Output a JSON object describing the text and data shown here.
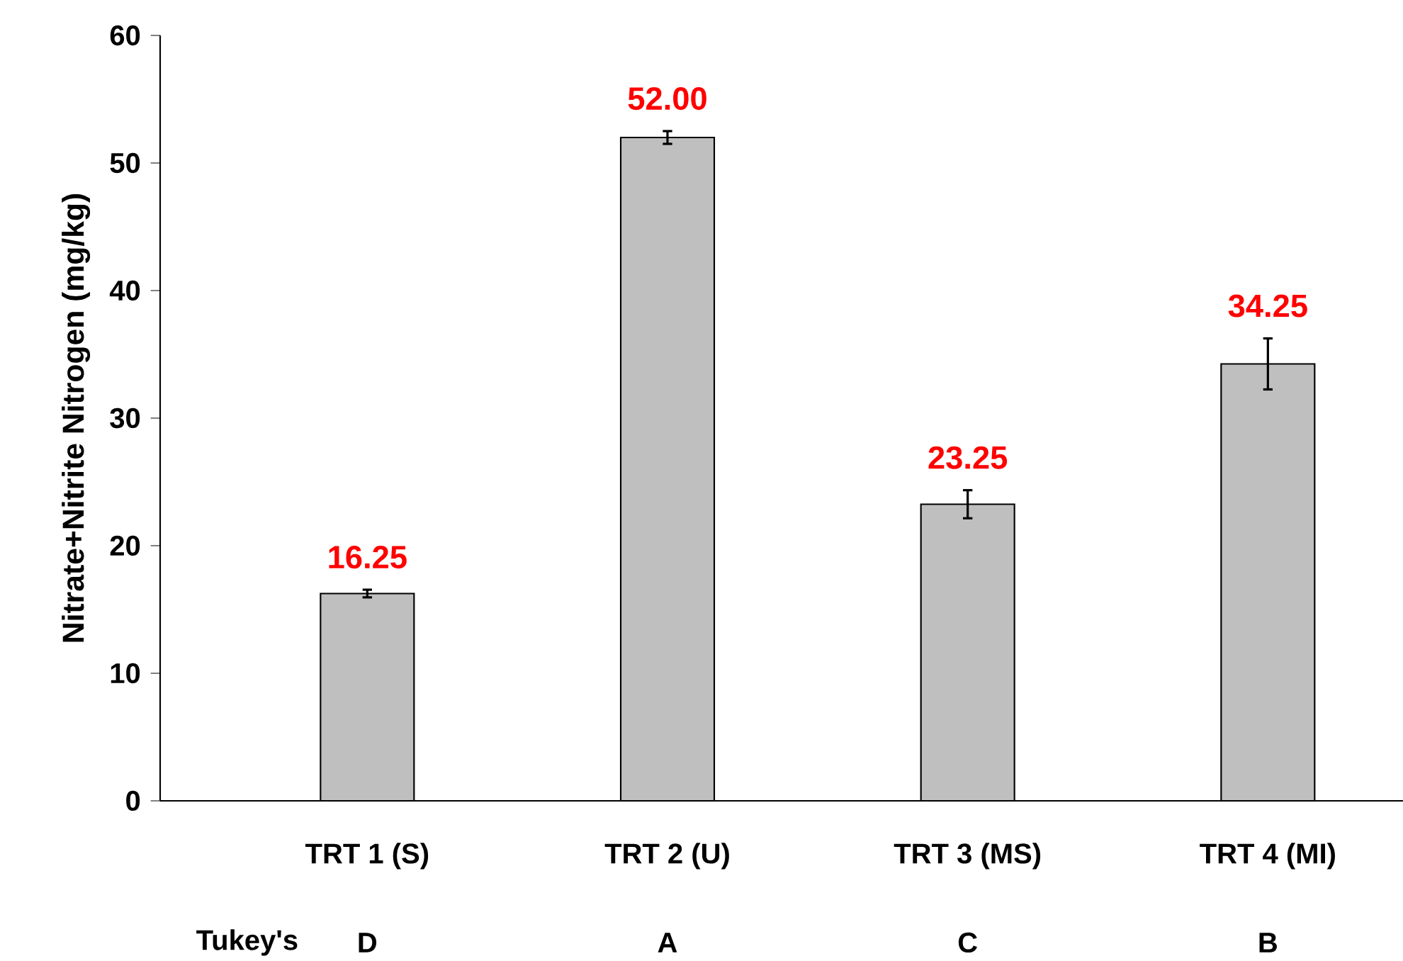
{
  "chart_data": {
    "type": "bar",
    "ylabel": "Nitrate+Nitrite Nitrogen (mg/kg)",
    "categories": [
      "TRT 1 (S)",
      "TRT 2  (U)",
      "TRT 3 (MS)",
      "TRT 4 (MI)"
    ],
    "values": [
      16.25,
      52.0,
      23.25,
      34.25
    ],
    "errors": [
      0.3,
      0.5,
      1.1,
      2.0
    ],
    "value_labels": [
      "16.25",
      "52.00",
      "23.25",
      "34.25"
    ],
    "color": "#bfbfbf",
    "ylim": [
      0,
      60
    ],
    "yticks": [
      0,
      10,
      20,
      30,
      40,
      50,
      60
    ],
    "annotations": [
      "Tukey's",
      "D",
      "A",
      "C",
      "B"
    ]
  }
}
